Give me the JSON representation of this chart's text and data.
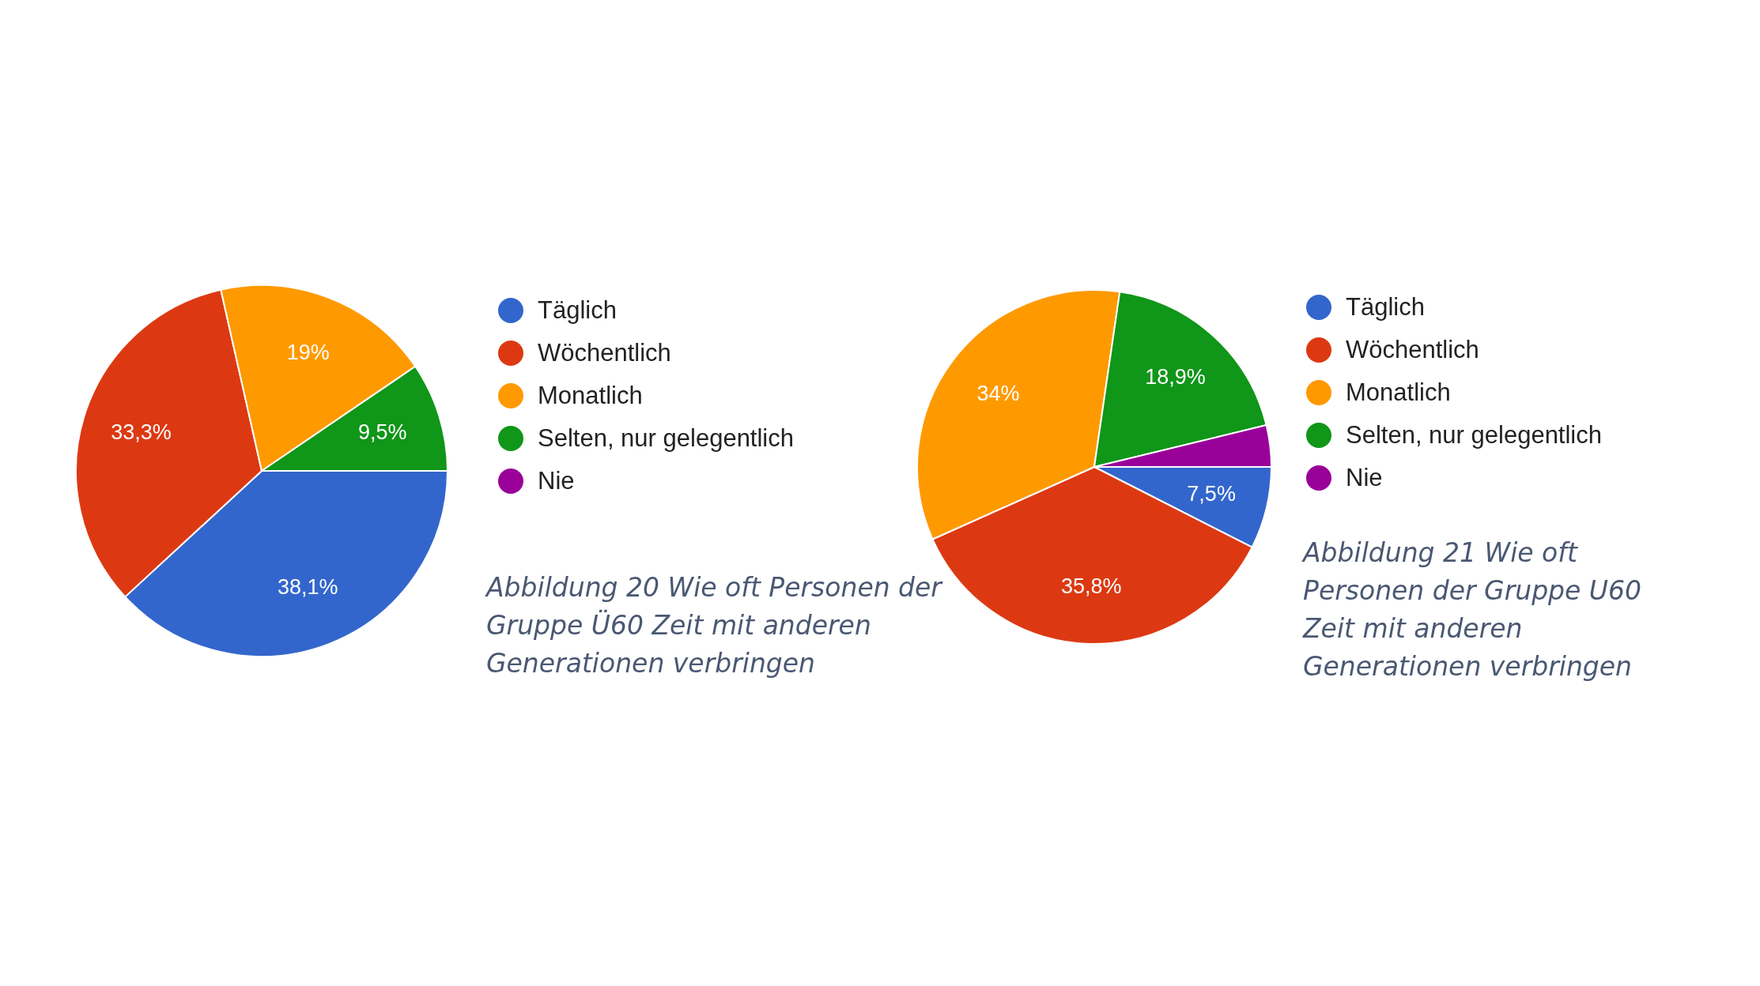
{
  "chart_data": [
    {
      "type": "pie",
      "categories": [
        "Täglich",
        "Wöchentlich",
        "Monatlich",
        "Selten, nur gelegentlich",
        "Nie"
      ],
      "values": [
        38.1,
        33.3,
        19,
        9.5,
        0
      ],
      "colors": [
        "#3366cc",
        "#dc3912",
        "#ff9900",
        "#109618",
        "#990099"
      ],
      "value_labels": [
        "38,1%",
        "33,3%",
        "19%",
        "9,5%",
        null
      ],
      "legend": "right",
      "annotations": [
        "Abbildung 20 Wie oft Personen der Gruppe Ü60 Zeit mit anderen Generationen verbringen"
      ]
    },
    {
      "type": "pie",
      "categories": [
        "Täglich",
        "Wöchentlich",
        "Monatlich",
        "Selten, nur gelegentlich",
        "Nie"
      ],
      "values": [
        7.5,
        35.8,
        34,
        18.9,
        3.8
      ],
      "colors": [
        "#3366cc",
        "#dc3912",
        "#ff9900",
        "#109618",
        "#990099"
      ],
      "value_labels": [
        "7,5%",
        "35,8%",
        "34%",
        "18,9%",
        null
      ],
      "legend": "right",
      "annotations": [
        "Abbildung 21 Wie oft Personen der Gruppe U60 Zeit mit anderen Generationen verbringen"
      ]
    }
  ]
}
